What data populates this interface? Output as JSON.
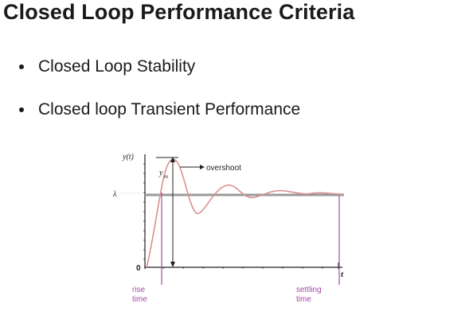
{
  "slide": {
    "title": "Closed Loop Performance Criteria",
    "bullets": [
      "Closed Loop Stability",
      "Closed loop Transient Performance"
    ]
  },
  "figure": {
    "y_axis_label": "y(t)",
    "x_axis_label": "t",
    "origin_label": "0",
    "setpoint_label": "λ",
    "peak_label": "y",
    "peak_subscript": "m",
    "overshoot_label": "overshoot",
    "rise_label_1": "rise",
    "rise_label_2": "time",
    "settling_label_1": "settling",
    "settling_label_2": "time",
    "colors": {
      "response": "#d98f8f",
      "markers": "#a44aa8",
      "axes": "#222222",
      "setpoint": "#9a9a9a"
    }
  }
}
